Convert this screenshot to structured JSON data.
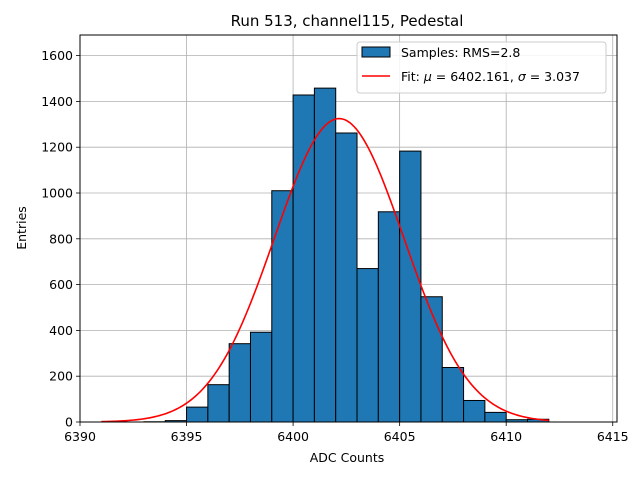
{
  "chart_data": {
    "type": "histogram",
    "title": "Run 513, channel115, Pedestal",
    "xlabel": "ADC Counts",
    "ylabel": "Entries",
    "xlim": [
      6390,
      6415.2
    ],
    "ylim": [
      0,
      1690
    ],
    "xticks": [
      6390,
      6395,
      6400,
      6405,
      6410,
      6415
    ],
    "yticks": [
      0,
      200,
      400,
      600,
      800,
      1000,
      1200,
      1400,
      1600
    ],
    "grid": true,
    "legend_location": "top-right",
    "bin_edges": [
      6391,
      6392,
      6393,
      6394,
      6395,
      6396,
      6397,
      6398,
      6399,
      6400,
      6401,
      6402,
      6403,
      6404,
      6405,
      6406,
      6407,
      6408,
      6409,
      6410,
      6411,
      6412
    ],
    "counts": [
      0,
      0,
      1,
      6,
      65,
      163,
      342,
      392,
      1010,
      1428,
      1458,
      1262,
      670,
      918,
      1183,
      547,
      238,
      94,
      42,
      10,
      12
    ],
    "series": [
      {
        "name": "Samples: RMS=2.8",
        "kind": "bars",
        "color": "#1f77b4"
      },
      {
        "name": "Fit: μ = 6402.161, σ = 3.037",
        "kind": "gaussian-fit",
        "color": "#ff0000",
        "mu": 6402.161,
        "sigma": 3.037,
        "amplitude": 1325,
        "range": [
          6391,
          6412
        ]
      }
    ],
    "legend": {
      "samples_label_text": "Samples: RMS=2.8",
      "fit_label_prefix": "Fit: ",
      "mu_symbol": "μ",
      "fit_mu_text": " = 6402.161, ",
      "sigma_symbol": "σ",
      "fit_sigma_text": " = 3.037"
    }
  }
}
